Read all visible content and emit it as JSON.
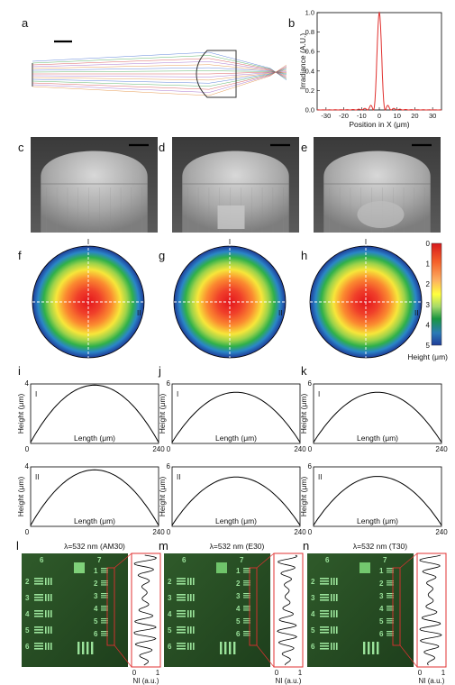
{
  "panel_letters": [
    "a",
    "b",
    "c",
    "d",
    "e",
    "f",
    "g",
    "h",
    "i",
    "j",
    "k",
    "l",
    "m",
    "n"
  ],
  "panel_b": {
    "ylabel": "Irradiance (A.U.)",
    "xlabel": "Position in X (μm)",
    "xticks": [
      "-30",
      "-20",
      "-10",
      "0",
      "10",
      "20",
      "30"
    ],
    "yticks": [
      "0.0",
      "0.2",
      "0.4",
      "0.6",
      "0.8",
      "1.0"
    ]
  },
  "cross_labels": {
    "v": "I",
    "h": "II"
  },
  "colorbar": {
    "ticks": [
      "0",
      "1",
      "2",
      "3",
      "4",
      "5"
    ],
    "label": "Height (μm)",
    "colors": [
      "#d7191c",
      "#f4602a",
      "#fdae61",
      "#ffff3f",
      "#a6d96a",
      "#1a9641",
      "#2c7bb6",
      "#1f3c99"
    ]
  },
  "profile_plots": {
    "ylabel": "Height (μm)",
    "xlabel": "Length (μm)",
    "x_min": "0",
    "x_max": "240",
    "rows": [
      {
        "marker": "I",
        "ymax": [
          "4",
          "6",
          "6"
        ]
      },
      {
        "marker": "II",
        "ymax": [
          "4",
          "6",
          "6"
        ]
      }
    ]
  },
  "imaging": {
    "titles": [
      "λ=532 nm (AM30)",
      "λ=532 nm (E30)",
      "λ=532 nm (T30)"
    ],
    "group_labels": [
      "6",
      "7",
      "2",
      "3",
      "4",
      "5",
      "6",
      "1",
      "2",
      "3",
      "4",
      "5",
      "6"
    ],
    "ni_label": "NI (a.u.)",
    "ni_ticks": [
      "0",
      "1"
    ]
  }
}
